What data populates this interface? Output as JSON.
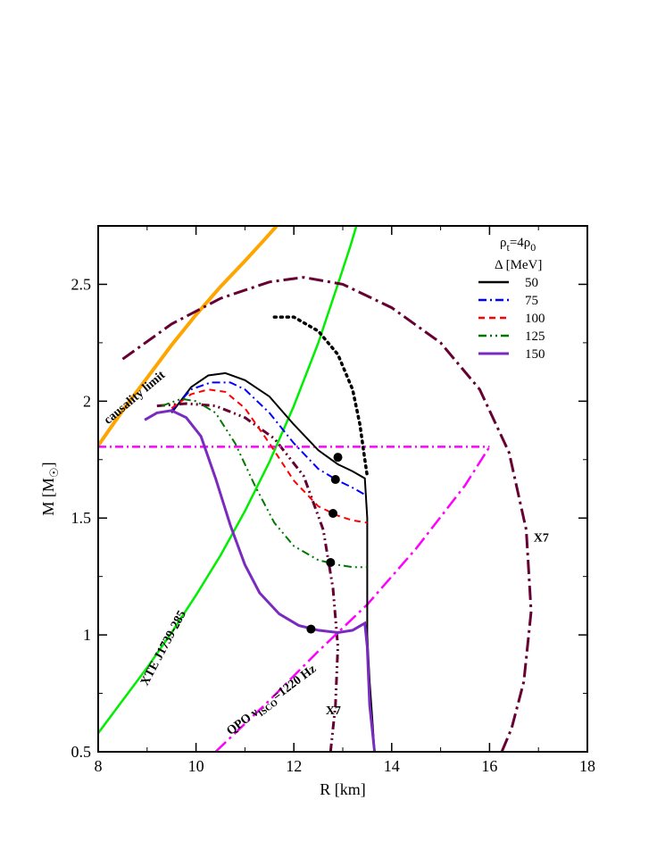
{
  "chart_data": {
    "type": "line",
    "xlabel": "R [km]",
    "ylabel": "M [M",
    "ylabel_sub": "☉",
    "ylabel_close": "]",
    "xlim": [
      8,
      18
    ],
    "ylim": [
      0.5,
      2.75
    ],
    "xticks": [
      "8",
      "10",
      "12",
      "14",
      "16",
      "18"
    ],
    "yticks": [
      "0.5",
      "1",
      "1.5",
      "2",
      "2.5"
    ],
    "legend": {
      "header_main": "ρ",
      "header_sub": "t",
      "header_mid": "=4ρ",
      "header_sub2": "0",
      "title": "Δ [MeV]",
      "placement": "top-right"
    },
    "series": [
      {
        "name": "50",
        "color": "#000000",
        "dash": "solid",
        "points": [
          [
            9.5,
            1.95
          ],
          [
            9.9,
            2.06
          ],
          [
            10.25,
            2.11
          ],
          [
            10.6,
            2.12
          ],
          [
            11.0,
            2.09
          ],
          [
            11.5,
            2.02
          ],
          [
            12.0,
            1.9
          ],
          [
            12.5,
            1.79
          ],
          [
            12.9,
            1.73
          ],
          [
            13.2,
            1.7
          ],
          [
            13.45,
            1.67
          ],
          [
            13.5,
            1.5
          ],
          [
            13.5,
            1.2
          ],
          [
            13.5,
            1.0
          ],
          [
            13.55,
            0.8
          ],
          [
            13.6,
            0.65
          ],
          [
            13.65,
            0.5
          ]
        ]
      },
      {
        "name": "75",
        "color": "#0000ff",
        "dash": "dashdot",
        "points": [
          [
            9.5,
            1.96
          ],
          [
            9.9,
            2.05
          ],
          [
            10.3,
            2.08
          ],
          [
            10.7,
            2.08
          ],
          [
            11.0,
            2.05
          ],
          [
            11.5,
            1.95
          ],
          [
            12.0,
            1.82
          ],
          [
            12.5,
            1.71
          ],
          [
            12.9,
            1.66
          ],
          [
            13.2,
            1.63
          ],
          [
            13.45,
            1.6
          ]
        ]
      },
      {
        "name": "100",
        "color": "#ff0000",
        "dash": "dashed",
        "points": [
          [
            9.5,
            1.97
          ],
          [
            9.9,
            2.03
          ],
          [
            10.25,
            2.05
          ],
          [
            10.6,
            2.04
          ],
          [
            11.0,
            1.97
          ],
          [
            11.5,
            1.82
          ],
          [
            12.0,
            1.66
          ],
          [
            12.5,
            1.55
          ],
          [
            12.9,
            1.51
          ],
          [
            13.2,
            1.49
          ],
          [
            13.5,
            1.48
          ]
        ]
      },
      {
        "name": "125",
        "color": "#007700",
        "dash": "dashdotdot",
        "points": [
          [
            9.3,
            1.98
          ],
          [
            9.7,
            2.01
          ],
          [
            10.0,
            2.0
          ],
          [
            10.4,
            1.95
          ],
          [
            10.8,
            1.82
          ],
          [
            11.2,
            1.64
          ],
          [
            11.6,
            1.48
          ],
          [
            12.0,
            1.38
          ],
          [
            12.5,
            1.32
          ],
          [
            12.9,
            1.3
          ],
          [
            13.2,
            1.29
          ],
          [
            13.5,
            1.29
          ]
        ]
      },
      {
        "name": "150",
        "color": "#7a2bbf",
        "dash": "solid",
        "points": [
          [
            8.95,
            1.92
          ],
          [
            9.2,
            1.95
          ],
          [
            9.5,
            1.96
          ],
          [
            9.8,
            1.93
          ],
          [
            10.1,
            1.85
          ],
          [
            10.4,
            1.67
          ],
          [
            10.7,
            1.47
          ],
          [
            11.0,
            1.3
          ],
          [
            11.3,
            1.18
          ],
          [
            11.7,
            1.09
          ],
          [
            12.1,
            1.04
          ],
          [
            12.5,
            1.02
          ],
          [
            12.9,
            1.01
          ],
          [
            13.2,
            1.02
          ],
          [
            13.45,
            1.05
          ],
          [
            13.5,
            0.95
          ],
          [
            13.55,
            0.7
          ],
          [
            13.65,
            0.5
          ]
        ]
      }
    ],
    "unlabeled_curves": [
      {
        "role": "causality-limit",
        "color": "#ffa500",
        "dash": "solid",
        "points": [
          [
            8.0,
            1.81
          ],
          [
            8.5,
            1.96
          ],
          [
            9.0,
            2.1
          ],
          [
            9.5,
            2.24
          ],
          [
            10.0,
            2.37
          ],
          [
            10.5,
            2.49
          ],
          [
            11.0,
            2.6
          ],
          [
            11.35,
            2.68
          ],
          [
            11.65,
            2.75
          ]
        ]
      },
      {
        "role": "xte-j1739-285",
        "color": "#00ee00",
        "dash": "solid",
        "points": [
          [
            8.0,
            0.58
          ],
          [
            8.5,
            0.72
          ],
          [
            9.0,
            0.86
          ],
          [
            9.5,
            1.01
          ],
          [
            10.0,
            1.17
          ],
          [
            10.5,
            1.34
          ],
          [
            11.0,
            1.53
          ],
          [
            11.5,
            1.74
          ],
          [
            12.0,
            1.98
          ],
          [
            12.5,
            2.25
          ],
          [
            12.9,
            2.5
          ],
          [
            13.15,
            2.66
          ],
          [
            13.28,
            2.75
          ]
        ]
      },
      {
        "role": "x7-outer",
        "color": "#660033",
        "dash": "longdashdot",
        "points": [
          [
            8.5,
            2.18
          ],
          [
            9.5,
            2.33
          ],
          [
            10.5,
            2.44
          ],
          [
            11.5,
            2.51
          ],
          [
            12.2,
            2.53
          ],
          [
            13.0,
            2.5
          ],
          [
            14.0,
            2.4
          ],
          [
            15.0,
            2.25
          ],
          [
            15.8,
            2.05
          ],
          [
            16.4,
            1.78
          ],
          [
            16.75,
            1.45
          ],
          [
            16.85,
            1.1
          ],
          [
            16.7,
            0.8
          ],
          [
            16.45,
            0.6
          ],
          [
            16.25,
            0.5
          ]
        ]
      },
      {
        "role": "x7-inner",
        "color": "#660033",
        "dash": "dashdotdot",
        "points": [
          [
            9.2,
            1.98
          ],
          [
            9.8,
            1.99
          ],
          [
            10.4,
            1.98
          ],
          [
            11.0,
            1.93
          ],
          [
            11.6,
            1.84
          ],
          [
            12.2,
            1.68
          ],
          [
            12.6,
            1.45
          ],
          [
            12.8,
            1.2
          ],
          [
            12.9,
            0.95
          ],
          [
            12.85,
            0.7
          ],
          [
            12.75,
            0.5
          ]
        ]
      },
      {
        "role": "maximum-mass-line",
        "color": "#ff00ff",
        "dash": "dashdot",
        "points": [
          [
            8.0,
            1.805
          ],
          [
            16.0,
            1.805
          ]
        ]
      },
      {
        "role": "qpo-isco",
        "color": "#ff00ff",
        "dash": "longdashdot",
        "points": [
          [
            10.4,
            0.5
          ],
          [
            11.5,
            0.72
          ],
          [
            12.5,
            0.93
          ],
          [
            13.5,
            1.13
          ],
          [
            14.5,
            1.37
          ],
          [
            15.5,
            1.64
          ],
          [
            16.0,
            1.805
          ]
        ]
      },
      {
        "role": "dotted-branch",
        "color": "#000000",
        "dash": "dotted",
        "points": [
          [
            11.6,
            2.36
          ],
          [
            12.0,
            2.36
          ],
          [
            12.5,
            2.3
          ],
          [
            12.9,
            2.2
          ],
          [
            13.2,
            2.05
          ],
          [
            13.35,
            1.9
          ],
          [
            13.45,
            1.75
          ],
          [
            13.5,
            1.68
          ]
        ]
      }
    ],
    "markers": [
      [
        12.9,
        1.76
      ],
      [
        12.85,
        1.665
      ],
      [
        12.8,
        1.52
      ],
      [
        12.75,
        1.31
      ],
      [
        12.35,
        1.025
      ]
    ],
    "annotations": [
      {
        "key": "causality",
        "text": "causality limit",
        "x": 8.2,
        "y": 1.9,
        "angle": -40
      },
      {
        "key": "xte",
        "text": "XTE J1739-285",
        "x": 9.0,
        "y": 0.78,
        "angle": -62
      },
      {
        "key": "qpo_main",
        "text": "QPO ν",
        "sub": "ISCO",
        "tail": "=1220 Hz",
        "x": 10.7,
        "y": 0.57,
        "angle": -37
      },
      {
        "key": "x7_right",
        "text": "X7",
        "x": 16.9,
        "y": 1.4,
        "angle": 0
      },
      {
        "key": "x7_bottom",
        "text": "X7",
        "x": 12.65,
        "y": 0.66,
        "angle": 0
      }
    ]
  }
}
